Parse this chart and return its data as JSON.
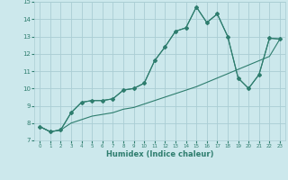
{
  "xlabel": "Humidex (Indice chaleur)",
  "x": [
    0,
    1,
    2,
    3,
    4,
    5,
    6,
    7,
    8,
    9,
    10,
    11,
    12,
    13,
    14,
    15,
    16,
    17,
    18,
    19,
    20,
    21,
    22,
    23
  ],
  "y_main": [
    7.8,
    7.5,
    7.6,
    8.6,
    9.2,
    9.3,
    9.3,
    9.4,
    9.9,
    10.0,
    10.3,
    11.6,
    12.4,
    13.3,
    13.5,
    14.7,
    13.8,
    14.3,
    13.0,
    10.6,
    10.0,
    10.8,
    12.9,
    12.85
  ],
  "y_low": [
    7.8,
    7.5,
    7.6,
    8.0,
    8.2,
    8.4,
    8.5,
    8.6,
    8.8,
    8.9,
    9.1,
    9.3,
    9.5,
    9.7,
    9.9,
    10.1,
    10.35,
    10.6,
    10.85,
    11.1,
    11.35,
    11.6,
    11.85,
    12.85
  ],
  "y_high": [
    7.8,
    7.5,
    7.6,
    8.6,
    9.2,
    9.3,
    9.3,
    9.4,
    9.9,
    10.0,
    10.3,
    11.6,
    12.4,
    13.3,
    13.5,
    14.7,
    13.8,
    14.3,
    13.0,
    10.6,
    10.0,
    10.8,
    12.9,
    12.85
  ],
  "line_color": "#2e7d6e",
  "bg_color": "#cce8ec",
  "grid_color": "#aacdd4",
  "xlim": [
    -0.5,
    23.5
  ],
  "ylim": [
    7,
    15
  ],
  "xticks": [
    0,
    1,
    2,
    3,
    4,
    5,
    6,
    7,
    8,
    9,
    10,
    11,
    12,
    13,
    14,
    15,
    16,
    17,
    18,
    19,
    20,
    21,
    22,
    23
  ],
  "yticks": [
    7,
    8,
    9,
    10,
    11,
    12,
    13,
    14,
    15
  ]
}
